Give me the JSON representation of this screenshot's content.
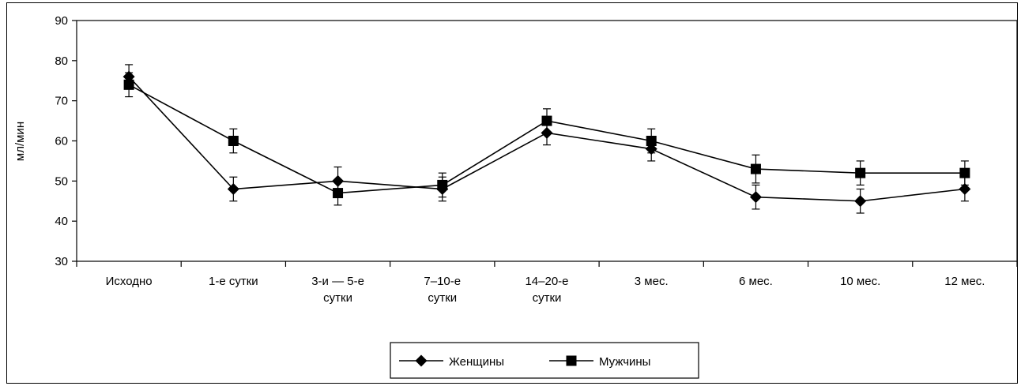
{
  "chart_data": {
    "type": "line",
    "ylabel": "мл/мин",
    "ylim": [
      30,
      90
    ],
    "yticks": [
      30,
      40,
      50,
      60,
      70,
      80,
      90
    ],
    "categories": [
      [
        "Исходно"
      ],
      [
        "1-е сутки"
      ],
      [
        "3-и — 5-е",
        "сутки"
      ],
      [
        "7–10-е",
        "сутки"
      ],
      [
        "14–20-е",
        "сутки"
      ],
      [
        "3 мес."
      ],
      [
        "6 мес."
      ],
      [
        "10 мес."
      ],
      [
        "12 мес."
      ]
    ],
    "series": [
      {
        "name": "Женщины",
        "marker": "diamond",
        "values": [
          76,
          48,
          50,
          48,
          62,
          58,
          46,
          45,
          48
        ],
        "errors": [
          3,
          3,
          3.5,
          3,
          3,
          3,
          3,
          3,
          3
        ]
      },
      {
        "name": "Мужчины",
        "marker": "square",
        "values": [
          74,
          60,
          47,
          49,
          65,
          60,
          53,
          52,
          52
        ],
        "errors": [
          3,
          3,
          3,
          3,
          3,
          3,
          3.5,
          3,
          3
        ]
      }
    ],
    "grid": false,
    "legend": "bottom"
  }
}
